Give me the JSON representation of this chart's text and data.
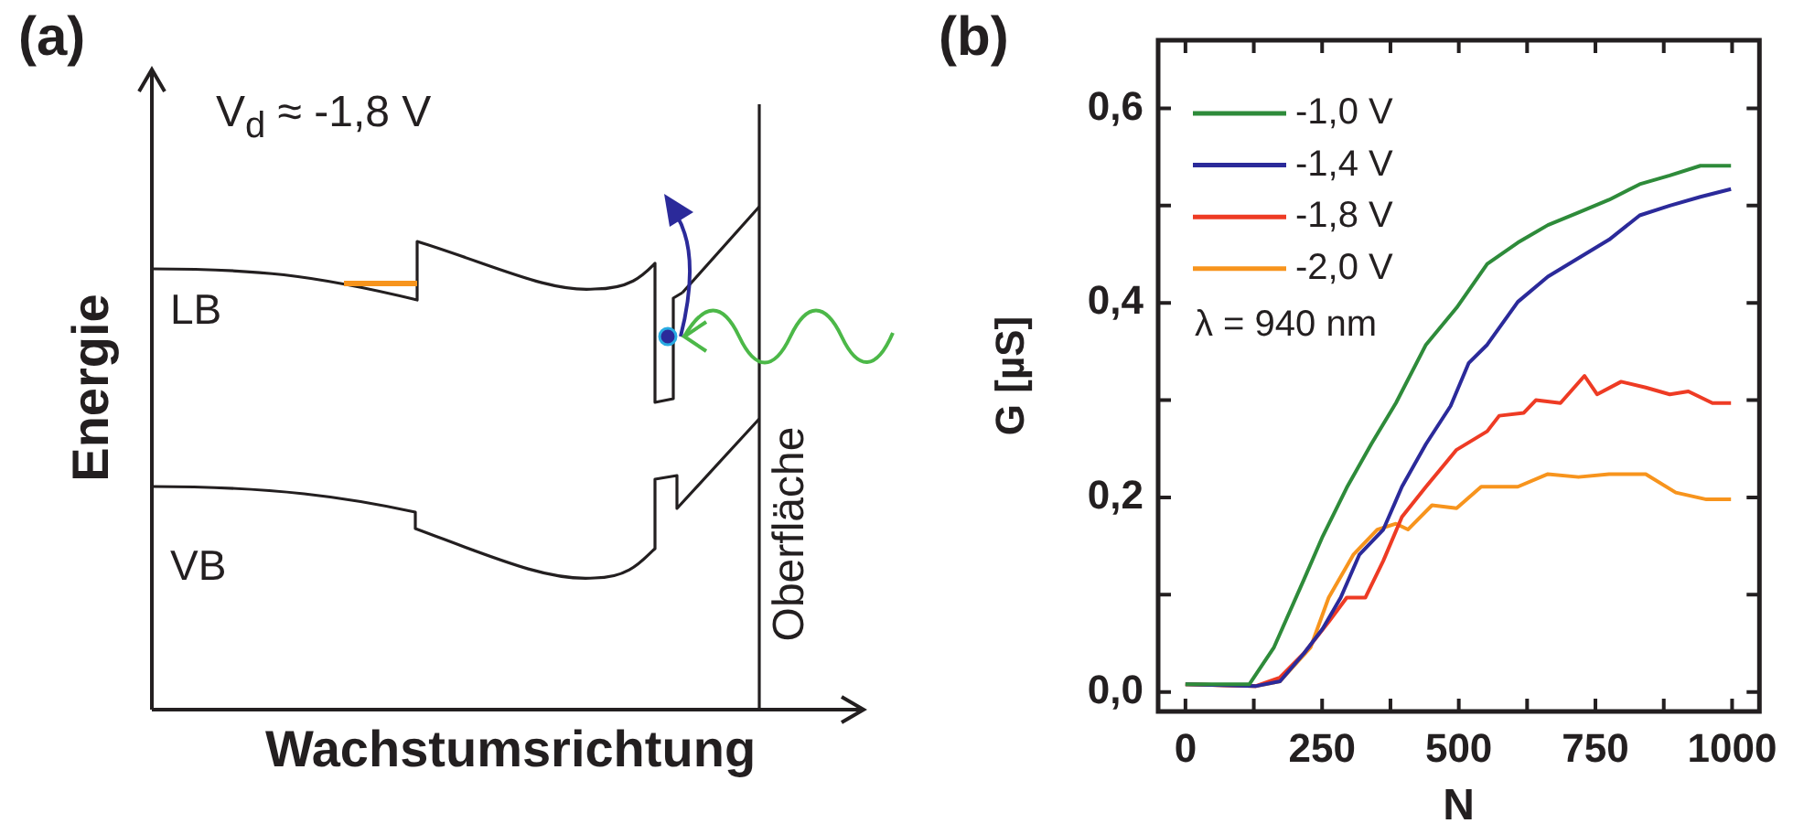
{
  "chart_data": [
    {
      "type": "other",
      "title": "(a)",
      "xlabel": "Wachstumsrichtung",
      "ylabel": "Energie",
      "annotations": [
        "V$_{d}$ ≈ -1,8 V",
        "LB",
        "VB",
        "Oberfläche"
      ]
    },
    {
      "type": "line",
      "title": "(b)",
      "xlabel": "N",
      "ylabel": "G [µS]",
      "legend": "top left",
      "annotations": [
        "λ = 940 nm"
      ],
      "xlim": [
        -50,
        1050
      ],
      "xticks": [
        0,
        {
          "value": 125,
          "label": null
        },
        250,
        {
          "value": 375,
          "label": null
        },
        500,
        {
          "value": 625,
          "label": null
        },
        750,
        {
          "value": 875,
          "label": null
        },
        1000
      ],
      "ylim": [
        -0.02,
        0.67
      ],
      "yticks": [
        {
          "value": 0,
          "label": "0,0"
        },
        {
          "value": 0.1,
          "label": null
        },
        {
          "value": 0.2,
          "label": "0,2"
        },
        {
          "value": 0.3,
          "label": null
        },
        {
          "value": 0.4,
          "label": "0,4"
        },
        {
          "value": 0.5,
          "label": null
        },
        {
          "value": 0.6,
          "label": "0,6"
        }
      ],
      "series": [
        {
          "name": "-1,0 V",
          "color": "#2e8b3a",
          "x": [
            0,
            117,
            162,
            217,
            251,
            295,
            340,
            385,
            440,
            496,
            552,
            608,
            663,
            719,
            775,
            831,
            886,
            942,
            998
          ],
          "values": [
            0.008,
            0.008,
            0.046,
            0.116,
            0.16,
            0.21,
            0.255,
            0.297,
            0.357,
            0.395,
            0.44,
            0.462,
            0.48,
            0.493,
            0.506,
            0.522,
            0.531,
            0.541,
            0.541
          ]
        },
        {
          "name": "-1,4 V",
          "color": "#2b2a9a",
          "x": [
            0,
            128,
            173,
            217,
            251,
            284,
            318,
            362,
            396,
            440,
            485,
            518,
            552,
            608,
            663,
            719,
            775,
            831,
            886,
            942,
            998
          ],
          "values": [
            0.008,
            0.006,
            0.011,
            0.04,
            0.065,
            0.097,
            0.141,
            0.167,
            0.211,
            0.255,
            0.294,
            0.338,
            0.357,
            0.401,
            0.427,
            0.446,
            0.465,
            0.49,
            0.5,
            0.509,
            0.517
          ]
        },
        {
          "name": "-1,8 V",
          "color": "#ee3b24",
          "x": [
            0,
            128,
            173,
            217,
            262,
            295,
            329,
            362,
            396,
            440,
            496,
            552,
            574,
            619,
            641,
            686,
            730,
            753,
            797,
            842,
            886,
            920,
            964,
            998
          ],
          "values": [
            0.008,
            0.006,
            0.015,
            0.04,
            0.072,
            0.097,
            0.097,
            0.135,
            0.18,
            0.211,
            0.249,
            0.268,
            0.284,
            0.287,
            0.3,
            0.297,
            0.325,
            0.306,
            0.319,
            0.313,
            0.306,
            0.309,
            0.297,
            0.297
          ]
        },
        {
          "name": "-2,0 V",
          "color": "#f7941d",
          "x": [
            0,
            128,
            173,
            229,
            262,
            307,
            351,
            385,
            407,
            451,
            496,
            541,
            608,
            663,
            719,
            775,
            842,
            897,
            953,
            998
          ],
          "values": [
            0.008,
            0.006,
            0.011,
            0.046,
            0.097,
            0.141,
            0.167,
            0.173,
            0.167,
            0.192,
            0.189,
            0.211,
            0.211,
            0.224,
            0.221,
            0.224,
            0.224,
            0.205,
            0.198,
            0.198
          ]
        }
      ]
    }
  ]
}
